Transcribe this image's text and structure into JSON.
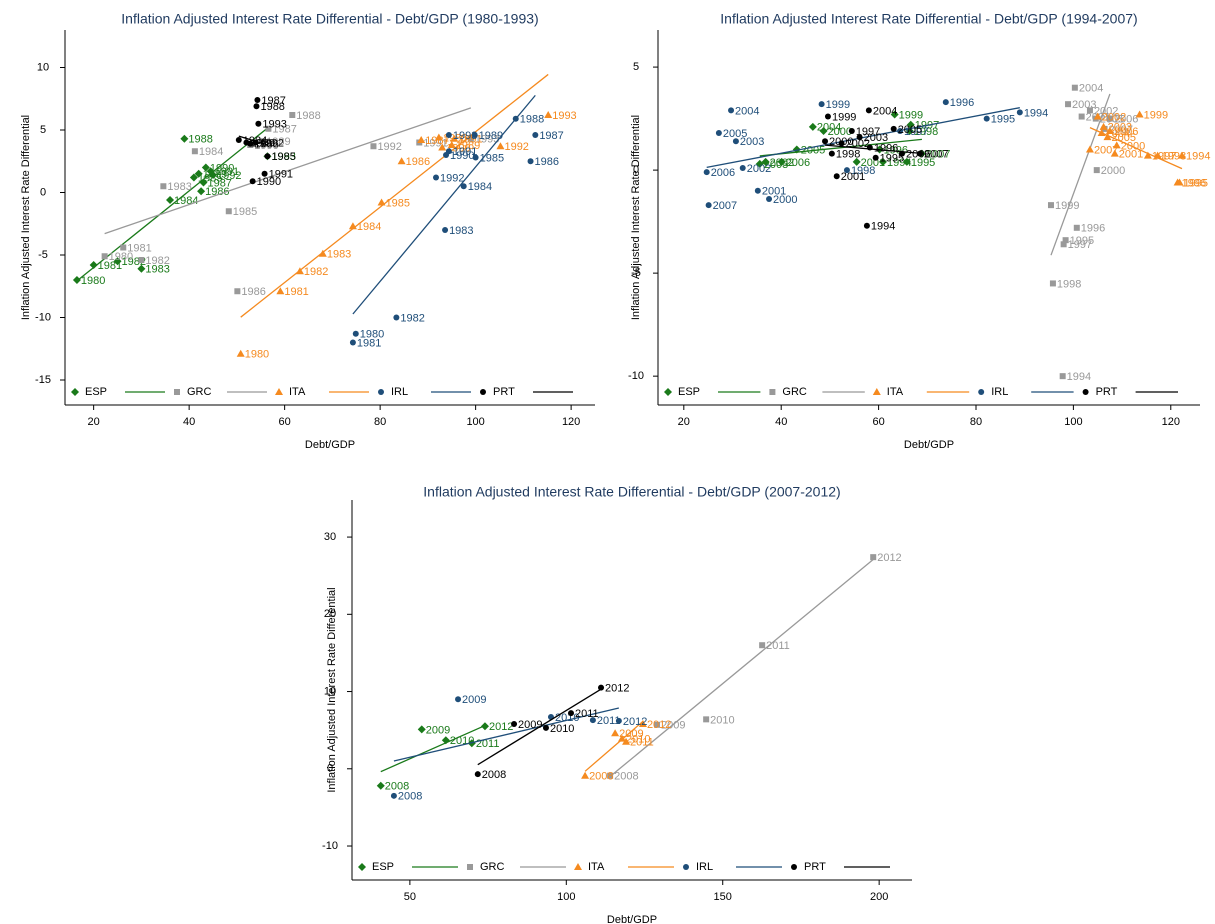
{
  "chart_data": [
    {
      "type": "scatter",
      "title": "Inflation Adjusted Interest Rate Differential - Debt/GDP (1980-1993)",
      "x_label": "Debt/GDP",
      "y_label": "Inflation Adjusted Interest Rate Differential",
      "xlim": [
        14,
        125
      ],
      "ylim": [
        -17,
        13
      ],
      "xticks": [
        20,
        40,
        60,
        80,
        100,
        120
      ],
      "yticks": [
        10,
        5,
        0,
        -5,
        -10,
        -15
      ],
      "fit_lines": true,
      "legend": "bottom",
      "series": [
        {
          "name": "ESP",
          "color": "#1a7a1a",
          "marker": "diamond",
          "labels": [
            "1980",
            "1981",
            "1982",
            "1983",
            "1984",
            "1985",
            "1986",
            "1987",
            "1988",
            "1989",
            "1990",
            "1991",
            "1992",
            "1993"
          ],
          "x": [
            16.5,
            20,
            25,
            30,
            36,
            41,
            42.5,
            43,
            39,
            42,
            43.5,
            44.5,
            45,
            56.4
          ],
          "y": [
            -7.0,
            -5.8,
            -5.5,
            -6.1,
            -0.6,
            1.2,
            0.1,
            0.8,
            4.3,
            1.5,
            2.0,
            1.7,
            1.4,
            2.9
          ]
        },
        {
          "name": "GRC",
          "color": "#999999",
          "marker": "square",
          "labels": [
            "1980",
            "1981",
            "1982",
            "1983",
            "1984",
            "1985",
            "1986",
            "1987",
            "1988",
            "1989",
            "1990",
            "1991",
            "1992",
            "1993"
          ],
          "x": [
            22.3,
            26.2,
            30,
            34.6,
            41.2,
            48.3,
            50.1,
            56.6,
            61.6,
            55.3,
            52.8,
            88.2,
            78.6,
            99
          ],
          "y": [
            -5.1,
            -4.4,
            -5.4,
            0.5,
            3.3,
            -1.5,
            -7.9,
            5.1,
            6.2,
            4.1,
            3.8,
            4.0,
            3.7,
            4.3
          ]
        },
        {
          "name": "ITA",
          "color": "#f58a1f",
          "marker": "triangle",
          "labels": [
            "1980",
            "1981",
            "1982",
            "1983",
            "1984",
            "1985",
            "1986",
            "1987",
            "1988",
            "1989",
            "1990",
            "1991",
            "1992",
            "1993"
          ],
          "x": [
            50.8,
            59.1,
            63.2,
            68,
            74.3,
            80.3,
            84.5,
            88.6,
            92.3,
            95,
            93,
            95.5,
            105.2,
            115.2
          ],
          "y": [
            -12.9,
            -7.9,
            -6.3,
            -4.9,
            -2.7,
            -0.8,
            2.5,
            4.2,
            4.4,
            3.8,
            3.6,
            4.3,
            3.7,
            6.2
          ]
        },
        {
          "name": "IRL",
          "color": "#1f4e79",
          "marker": "circle",
          "labels": [
            "1980",
            "1981",
            "1982",
            "1983",
            "1984",
            "1985",
            "1986",
            "1987",
            "1988",
            "1989",
            "1990",
            "1991",
            "1992",
            "1993"
          ],
          "x": [
            74.9,
            74.3,
            83.4,
            93.6,
            97.5,
            100,
            111.5,
            112.5,
            108.4,
            99.8,
            93.8,
            94.4,
            91.7,
            94.4
          ],
          "y": [
            -11.3,
            -12.0,
            -10.0,
            -3.0,
            0.5,
            2.8,
            2.5,
            4.6,
            5.9,
            4.6,
            3.0,
            3.3,
            1.2,
            4.6
          ]
        },
        {
          "name": "PRT",
          "color": "#000000",
          "marker": "circle",
          "labels": [
            "1984",
            "1985",
            "1986",
            "1987",
            "1988",
            "1989",
            "1990",
            "1991",
            "1992",
            "1993"
          ],
          "x": [
            50.4,
            56.4,
            52.8,
            54.3,
            54.1,
            52,
            53.3,
            55.8,
            53.9,
            54.5
          ],
          "y": [
            4.2,
            2.9,
            3.9,
            7.4,
            6.9,
            4.0,
            0.9,
            1.5,
            4.0,
            5.5
          ]
        }
      ]
    },
    {
      "type": "scatter",
      "title": "Inflation Adjusted Interest Rate Differential - Debt/GDP (1994-2007)",
      "x_label": "Debt/GDP",
      "y_label": "Inflation Adjusted Interest Rate Differential",
      "xlim": [
        14.7,
        126
      ],
      "ylim": [
        -11.4,
        6.8
      ],
      "xticks": [
        20,
        40,
        60,
        80,
        100,
        120
      ],
      "yticks": [
        5,
        0,
        -5,
        -10
      ],
      "fit_lines": true,
      "legend": "bottom",
      "series": [
        {
          "name": "ESP",
          "color": "#1a7a1a",
          "marker": "diamond",
          "labels": [
            "1994",
            "1995",
            "1996",
            "1997",
            "1998",
            "1999",
            "2000",
            "2001",
            "2002",
            "2003",
            "2004",
            "2005",
            "2006",
            "2007"
          ],
          "x": [
            60.9,
            65.8,
            60.2,
            66.6,
            66.4,
            63.3,
            48.7,
            55.5,
            36.8,
            35.6,
            46.5,
            43.2,
            40.1,
            68.9
          ],
          "y": [
            0.4,
            0.4,
            1.0,
            2.2,
            1.9,
            2.7,
            1.9,
            0.4,
            0.4,
            0.3,
            2.1,
            1.0,
            0.4,
            0.8
          ]
        },
        {
          "name": "GRC",
          "color": "#999999",
          "marker": "square",
          "labels": [
            "1994",
            "1995",
            "1996",
            "1997",
            "1998",
            "1999",
            "2000",
            "2001",
            "2002",
            "2003",
            "2004",
            "2005",
            "2006",
            "2007"
          ],
          "x": [
            97.8,
            98.4,
            100.7,
            98,
            95.8,
            95.4,
            104.8,
            101.7,
            103.4,
            98.9,
            100.3,
            104.6,
            107.5,
            106.4
          ],
          "y": [
            -10.0,
            -3.4,
            -2.8,
            -3.6,
            -5.5,
            -1.7,
            0.0,
            2.6,
            2.9,
            3.2,
            4.0,
            2.5,
            2.5,
            2.0
          ]
        },
        {
          "name": "ITA",
          "color": "#f58a1f",
          "marker": "triangle",
          "labels": [
            "1994",
            "1995",
            "1996",
            "1997",
            "1998",
            "1999",
            "2000",
            "2001",
            "2002",
            "2003",
            "2004",
            "2005",
            "2006",
            "2007"
          ],
          "x": [
            122.3,
            121.8,
            121.4,
            115.3,
            117.3,
            113.6,
            108.9,
            108.5,
            105,
            106.2,
            105.8,
            107,
            107.5,
            103.4
          ],
          "y": [
            0.7,
            -0.6,
            -0.6,
            0.7,
            0.7,
            2.7,
            1.2,
            0.8,
            2.6,
            2.1,
            1.8,
            1.6,
            1.9,
            1.0
          ]
        },
        {
          "name": "IRL",
          "color": "#1f4e79",
          "marker": "circle",
          "labels": [
            "1994",
            "1995",
            "1996",
            "1997",
            "1998",
            "1999",
            "2000",
            "2001",
            "2002",
            "2003",
            "2004",
            "2005",
            "2006",
            "2007"
          ],
          "x": [
            89,
            82.2,
            73.8,
            64.4,
            53.5,
            48.3,
            37.5,
            35.2,
            32.1,
            30.7,
            29.7,
            27.2,
            24.7,
            25.1
          ],
          "y": [
            2.8,
            2.5,
            3.3,
            1.9,
            0.0,
            3.2,
            -1.4,
            -1.0,
            0.1,
            1.4,
            2.9,
            1.8,
            -0.1,
            -1.7
          ]
        },
        {
          "name": "PRT",
          "color": "#000000",
          "marker": "circle",
          "labels": [
            "1994",
            "1995",
            "1996",
            "1997",
            "1998",
            "1999",
            "2000",
            "2001",
            "2002",
            "2003",
            "2004",
            "2005",
            "2006",
            "2007"
          ],
          "x": [
            57.6,
            59.4,
            58.2,
            54.5,
            50.4,
            49.6,
            49,
            51.4,
            52.4,
            56.1,
            58,
            63.1,
            64.8,
            68.5
          ],
          "y": [
            -2.7,
            0.6,
            1.1,
            1.9,
            0.8,
            2.6,
            1.4,
            -0.3,
            1.3,
            1.6,
            2.9,
            2.0,
            0.8,
            0.8
          ]
        }
      ]
    },
    {
      "type": "scatter",
      "title": "Inflation Adjusted Interest Rate Differential - Debt/GDP (2007-2012)",
      "x_label": "Debt/GDP",
      "y_label": "Inflation Adjusted Interest Rate Differential",
      "xlim": [
        31.5,
        210.5
      ],
      "ylim": [
        -14.4,
        34.8
      ],
      "xticks": [
        50,
        100,
        150,
        200
      ],
      "yticks": [
        30,
        20,
        10,
        0,
        -10
      ],
      "fit_lines": true,
      "legend": "bottom",
      "series": [
        {
          "name": "ESP",
          "color": "#1a7a1a",
          "marker": "diamond",
          "labels": [
            "2008",
            "2009",
            "2010",
            "2011",
            "2012"
          ],
          "x": [
            40.7,
            53.8,
            61.5,
            69.8,
            74
          ],
          "y": [
            -2.2,
            5.1,
            3.7,
            3.3,
            5.5
          ]
        },
        {
          "name": "GRC",
          "color": "#999999",
          "marker": "square",
          "labels": [
            "2008",
            "2009",
            "2010",
            "2011",
            "2012"
          ],
          "x": [
            114,
            129,
            144.7,
            162.6,
            198.1
          ],
          "y": [
            -0.9,
            5.7,
            6.4,
            16.0,
            27.4
          ]
        },
        {
          "name": "ITA",
          "color": "#f58a1f",
          "marker": "triangle",
          "labels": [
            "2008",
            "2009",
            "2010",
            "2011",
            "2012"
          ],
          "x": [
            106,
            115.6,
            117.8,
            119.1,
            124.5
          ],
          "y": [
            -0.9,
            4.6,
            3.9,
            3.5,
            5.8
          ]
        },
        {
          "name": "IRL",
          "color": "#1f4e79",
          "marker": "circle",
          "labels": [
            "2008",
            "2009",
            "2010",
            "2011",
            "2012"
          ],
          "x": [
            44.9,
            65.4,
            95.1,
            108.5,
            116.8
          ],
          "y": [
            -3.5,
            9.0,
            6.7,
            6.3,
            6.2
          ]
        },
        {
          "name": "PRT",
          "color": "#000000",
          "marker": "circle",
          "labels": [
            "2008",
            "2009",
            "2010",
            "2011",
            "2012"
          ],
          "x": [
            71.7,
            83.3,
            93.5,
            101.5,
            111.1
          ],
          "y": [
            -0.7,
            5.8,
            5.3,
            7.2,
            10.5
          ]
        }
      ]
    }
  ]
}
